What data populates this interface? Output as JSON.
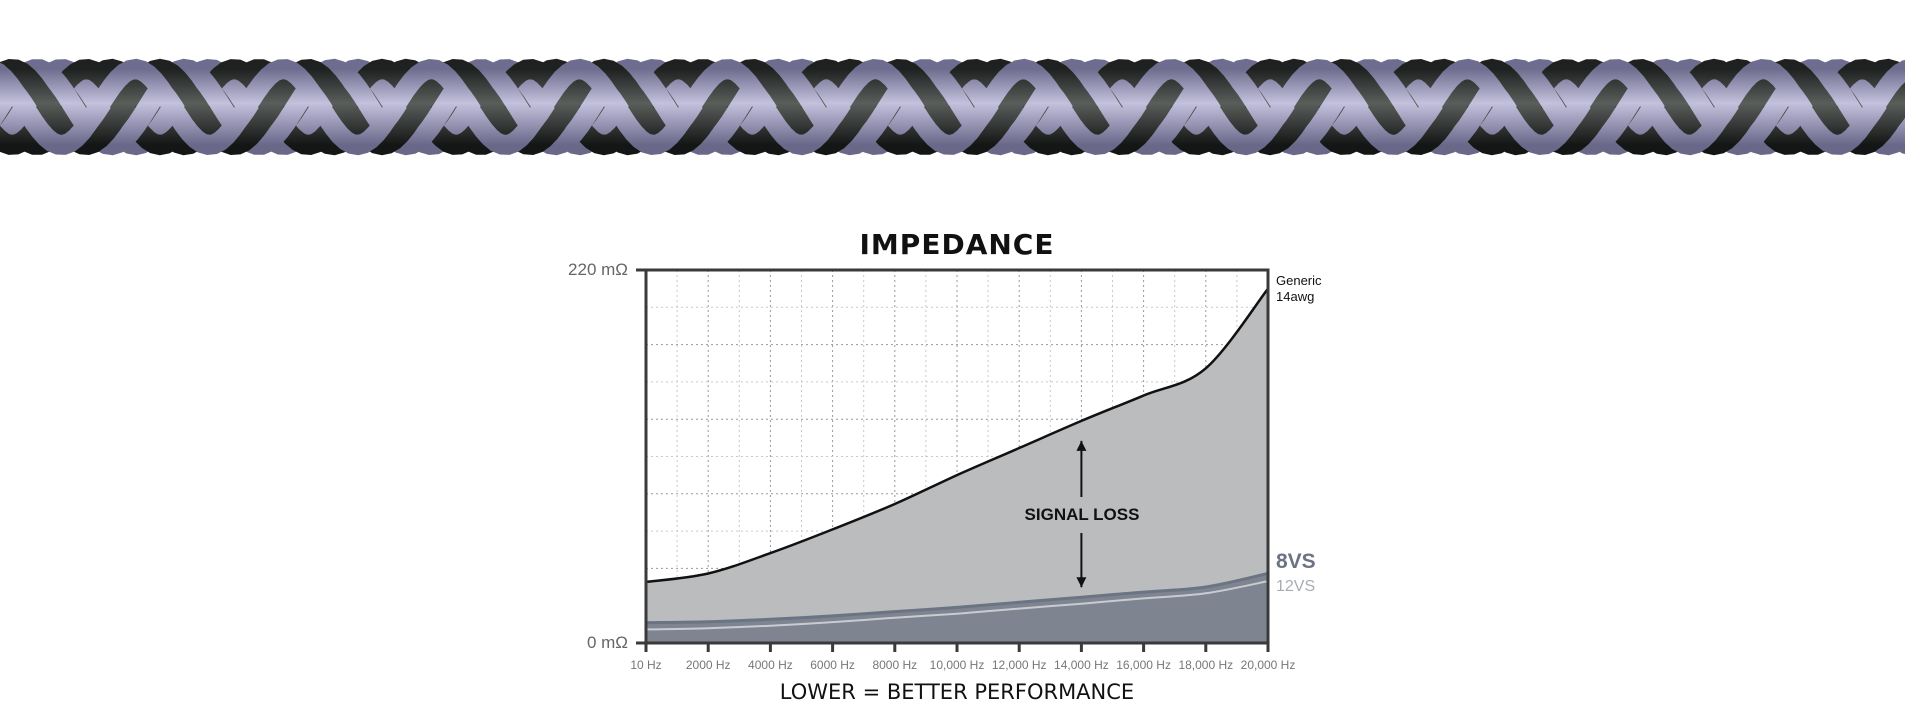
{
  "cable_image": {
    "colors": {
      "dark_strand": "#3a3d3c",
      "light_strand": "#9d9bbd"
    }
  },
  "chart_data": {
    "type": "area",
    "title": "IMPEDANCE",
    "xlabel": "",
    "ylabel": "",
    "x_tick_labels": [
      "10 Hz",
      "2000 Hz",
      "4000 Hz",
      "6000 Hz",
      "8000 Hz",
      "10,000 Hz",
      "12,000 Hz",
      "14,000 Hz",
      "16,000 Hz",
      "18,000 Hz",
      "20,000 Hz"
    ],
    "y_tick_labels": [
      "220 mΩ",
      "0 mΩ"
    ],
    "xlim": [
      10,
      20000
    ],
    "ylim": [
      0,
      220
    ],
    "grid": true,
    "x": [
      10,
      2000,
      4000,
      6000,
      8000,
      10000,
      12000,
      14000,
      16000,
      18000,
      20000
    ],
    "series": [
      {
        "name": "Generic 14awg",
        "label_lines": [
          "Generic",
          "14awg"
        ],
        "color": "#111111",
        "fill": "#bbbcbe",
        "values": [
          36,
          41,
          53,
          67,
          82,
          99,
          115,
          131,
          146,
          162,
          209
        ]
      },
      {
        "name": "8VS",
        "color": "#6a7483",
        "fill": "#7e8590",
        "values": [
          12,
          12.5,
          14,
          16,
          18.5,
          21,
          24,
          27,
          30,
          33,
          41
        ]
      },
      {
        "name": "12VS",
        "color": "#c8ccd2",
        "values": [
          8,
          8.7,
          10.2,
          12.3,
          14.9,
          17.3,
          20.3,
          23.2,
          26.3,
          29.3,
          36.5
        ]
      }
    ],
    "annotation": {
      "text": "SIGNAL LOSS",
      "x": 14000
    },
    "caption": "LOWER = BETTER PERFORMANCE",
    "colors": {
      "plot_background": "#ffffff",
      "axis": "#3a3a3a",
      "grid": "#999999"
    }
  }
}
